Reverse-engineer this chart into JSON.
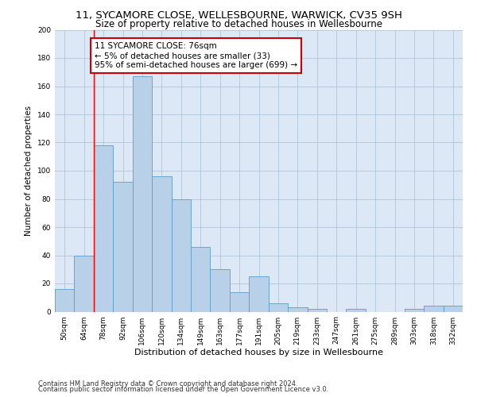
{
  "title1": "11, SYCAMORE CLOSE, WELLESBOURNE, WARWICK, CV35 9SH",
  "title2": "Size of property relative to detached houses in Wellesbourne",
  "xlabel": "Distribution of detached houses by size in Wellesbourne",
  "ylabel": "Number of detached properties",
  "footer1": "Contains HM Land Registry data © Crown copyright and database right 2024.",
  "footer2": "Contains public sector information licensed under the Open Government Licence v3.0.",
  "annotation_line1": "11 SYCAMORE CLOSE: 76sqm",
  "annotation_line2": "← 5% of detached houses are smaller (33)",
  "annotation_line3": "95% of semi-detached houses are larger (699) →",
  "bar_labels": [
    "50sqm",
    "64sqm",
    "78sqm",
    "92sqm",
    "106sqm",
    "120sqm",
    "134sqm",
    "149sqm",
    "163sqm",
    "177sqm",
    "191sqm",
    "205sqm",
    "219sqm",
    "233sqm",
    "247sqm",
    "261sqm",
    "275sqm",
    "289sqm",
    "303sqm",
    "318sqm",
    "332sqm"
  ],
  "bar_values": [
    16,
    40,
    118,
    92,
    167,
    96,
    80,
    46,
    30,
    14,
    25,
    6,
    3,
    2,
    0,
    2,
    0,
    0,
    2,
    4,
    4
  ],
  "bar_color": "#b8d0e8",
  "bar_edge_color": "#5a9fc8",
  "vline_x_index": 1.5,
  "ylim": [
    0,
    200
  ],
  "yticks": [
    0,
    20,
    40,
    60,
    80,
    100,
    120,
    140,
    160,
    180,
    200
  ],
  "background_color": "#ffffff",
  "ax_background_color": "#dce8f5",
  "grid_color": "#b0c4d8",
  "annotation_box_color": "#cc0000",
  "title1_fontsize": 9.5,
  "title2_fontsize": 8.5,
  "xlabel_fontsize": 8,
  "ylabel_fontsize": 7.5,
  "tick_fontsize": 6.5,
  "annotation_fontsize": 7.5,
  "footer_fontsize": 6.0
}
